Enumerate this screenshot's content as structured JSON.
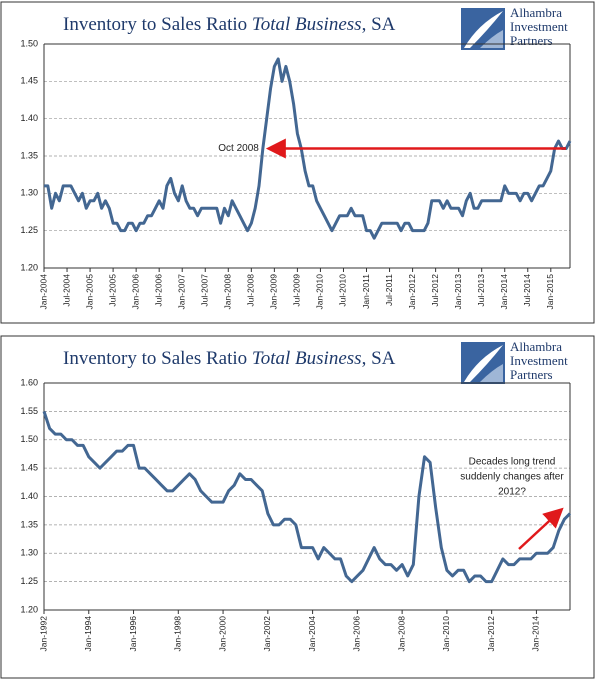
{
  "chart_data": [
    {
      "type": "line",
      "title": [
        {
          "text": "Inventory to Sales Ratio ",
          "style": "normal"
        },
        {
          "text": "Total Business",
          "style": "italic"
        },
        {
          "text": ", SA",
          "style": "normal"
        }
      ],
      "logo_text": [
        "Alhambra",
        "Investment",
        "Partners"
      ],
      "annotation": [
        "Oct 2008"
      ],
      "annotation_index": 57,
      "categories": [
        "Jan-2004",
        null,
        null,
        null,
        null,
        null,
        "Jul-2004",
        null,
        null,
        null,
        null,
        null,
        "Jan-2005",
        null,
        null,
        null,
        null,
        null,
        "Jul-2005",
        null,
        null,
        null,
        null,
        null,
        "Jan-2006",
        null,
        null,
        null,
        null,
        null,
        "Jul-2006",
        null,
        null,
        null,
        null,
        null,
        "Jan-2007",
        null,
        null,
        null,
        null,
        null,
        "Jul-2007",
        null,
        null,
        null,
        null,
        null,
        "Jan-2008",
        null,
        null,
        null,
        null,
        null,
        "Jul-2008",
        null,
        null,
        null,
        null,
        null,
        "Jan-2009",
        null,
        null,
        null,
        null,
        null,
        "Jul-2009",
        null,
        null,
        null,
        null,
        null,
        "Jan-2010",
        null,
        null,
        null,
        null,
        null,
        "Jul-2010",
        null,
        null,
        null,
        null,
        null,
        "Jan-2011",
        null,
        null,
        null,
        null,
        null,
        "Jul-2011",
        null,
        null,
        null,
        null,
        null,
        "Jan-2012",
        null,
        null,
        null,
        null,
        null,
        "Jul-2012",
        null,
        null,
        null,
        null,
        null,
        "Jan-2013",
        null,
        null,
        null,
        null,
        null,
        "Jul-2013",
        null,
        null,
        null,
        null,
        null,
        "Jan-2014",
        null,
        null,
        null,
        null,
        null,
        "Jul-2014",
        null,
        null,
        null,
        null,
        null,
        "Jan-2015",
        null,
        null,
        null,
        null,
        null
      ],
      "series": [
        {
          "color": "#436792",
          "values": [
            1.31,
            1.31,
            1.28,
            1.3,
            1.29,
            1.31,
            1.31,
            1.31,
            1.3,
            1.29,
            1.3,
            1.28,
            1.29,
            1.29,
            1.3,
            1.28,
            1.29,
            1.28,
            1.26,
            1.26,
            1.25,
            1.25,
            1.26,
            1.26,
            1.25,
            1.26,
            1.26,
            1.27,
            1.27,
            1.28,
            1.29,
            1.28,
            1.31,
            1.32,
            1.3,
            1.29,
            1.31,
            1.29,
            1.28,
            1.28,
            1.27,
            1.28,
            1.28,
            1.28,
            1.28,
            1.28,
            1.26,
            1.28,
            1.27,
            1.29,
            1.28,
            1.27,
            1.26,
            1.25,
            1.26,
            1.28,
            1.31,
            1.36,
            1.4,
            1.44,
            1.47,
            1.48,
            1.45,
            1.47,
            1.45,
            1.42,
            1.38,
            1.36,
            1.33,
            1.31,
            1.31,
            1.29,
            1.28,
            1.27,
            1.26,
            1.25,
            1.26,
            1.27,
            1.27,
            1.27,
            1.28,
            1.27,
            1.27,
            1.27,
            1.25,
            1.25,
            1.24,
            1.25,
            1.26,
            1.26,
            1.26,
            1.26,
            1.26,
            1.25,
            1.26,
            1.26,
            1.25,
            1.25,
            1.25,
            1.25,
            1.26,
            1.29,
            1.29,
            1.29,
            1.28,
            1.29,
            1.28,
            1.28,
            1.28,
            1.27,
            1.29,
            1.3,
            1.28,
            1.28,
            1.29,
            1.29,
            1.29,
            1.29,
            1.29,
            1.29,
            1.31,
            1.3,
            1.3,
            1.3,
            1.29,
            1.3,
            1.3,
            1.29,
            1.3,
            1.31,
            1.31,
            1.32,
            1.33,
            1.36,
            1.37,
            1.36,
            1.36,
            1.37
          ]
        }
      ],
      "ylim": [
        1.2,
        1.5
      ],
      "yticks": [
        {
          "value": 1.2,
          "label": "1.20"
        },
        {
          "value": 1.25,
          "label": "1.25"
        },
        {
          "value": 1.3,
          "label": "1.30"
        },
        {
          "value": 1.35,
          "label": "1.35"
        },
        {
          "value": 1.4,
          "label": "1.40"
        },
        {
          "value": 1.45,
          "label": "1.45"
        },
        {
          "value": 1.5,
          "label": "1.50"
        }
      ],
      "grid": true
    },
    {
      "type": "line",
      "title": [
        {
          "text": "Inventory to Sales Ratio ",
          "style": "normal"
        },
        {
          "text": "Total Business",
          "style": "italic"
        },
        {
          "text": ", SA",
          "style": "normal"
        }
      ],
      "logo_text": [
        "Alhambra",
        "Investment",
        "Partners"
      ],
      "annotation": [
        "Decades long trend",
        "suddenly changes after",
        "2012?"
      ],
      "categories": [
        "Jan-1992",
        null,
        null,
        null,
        null,
        null,
        null,
        null,
        "Jan-1994",
        null,
        null,
        null,
        null,
        null,
        null,
        null,
        "Jan-1996",
        null,
        null,
        null,
        null,
        null,
        null,
        null,
        "Jan-1998",
        null,
        null,
        null,
        null,
        null,
        null,
        null,
        "Jan-2000",
        null,
        null,
        null,
        null,
        null,
        null,
        null,
        "Jan-2002",
        null,
        null,
        null,
        null,
        null,
        null,
        null,
        "Jan-2004",
        null,
        null,
        null,
        null,
        null,
        null,
        null,
        "Jan-2006",
        null,
        null,
        null,
        null,
        null,
        null,
        null,
        "Jan-2008",
        null,
        null,
        null,
        null,
        null,
        null,
        null,
        "Jan-2010",
        null,
        null,
        null,
        null,
        null,
        null,
        null,
        "Jan-2012",
        null,
        null,
        null,
        null,
        null,
        null,
        null,
        "Jan-2014",
        null,
        null,
        null,
        null,
        null,
        null
      ],
      "series": [
        {
          "color": "#436792",
          "values": [
            1.55,
            1.52,
            1.51,
            1.51,
            1.5,
            1.5,
            1.49,
            1.49,
            1.47,
            1.46,
            1.45,
            1.46,
            1.47,
            1.48,
            1.48,
            1.49,
            1.49,
            1.45,
            1.45,
            1.44,
            1.43,
            1.42,
            1.41,
            1.41,
            1.42,
            1.43,
            1.44,
            1.43,
            1.41,
            1.4,
            1.39,
            1.39,
            1.39,
            1.41,
            1.42,
            1.44,
            1.43,
            1.43,
            1.42,
            1.41,
            1.37,
            1.35,
            1.35,
            1.36,
            1.36,
            1.35,
            1.31,
            1.31,
            1.31,
            1.29,
            1.31,
            1.3,
            1.29,
            1.29,
            1.26,
            1.25,
            1.26,
            1.27,
            1.29,
            1.31,
            1.29,
            1.28,
            1.28,
            1.27,
            1.28,
            1.26,
            1.28,
            1.4,
            1.47,
            1.46,
            1.38,
            1.31,
            1.27,
            1.26,
            1.27,
            1.27,
            1.25,
            1.26,
            1.26,
            1.25,
            1.25,
            1.27,
            1.29,
            1.28,
            1.28,
            1.29,
            1.29,
            1.29,
            1.3,
            1.3,
            1.3,
            1.31,
            1.34,
            1.36,
            1.37
          ]
        }
      ],
      "ylim": [
        1.2,
        1.6
      ],
      "yticks": [
        {
          "value": 1.2,
          "label": "1.20"
        },
        {
          "value": 1.25,
          "label": "1.25"
        },
        {
          "value": 1.3,
          "label": "1.30"
        },
        {
          "value": 1.35,
          "label": "1.35"
        },
        {
          "value": 1.4,
          "label": "1.40"
        },
        {
          "value": 1.45,
          "label": "1.45"
        },
        {
          "value": 1.5,
          "label": "1.50"
        },
        {
          "value": 1.55,
          "label": "1.55"
        },
        {
          "value": 1.6,
          "label": "1.60"
        }
      ],
      "grid": true
    }
  ]
}
